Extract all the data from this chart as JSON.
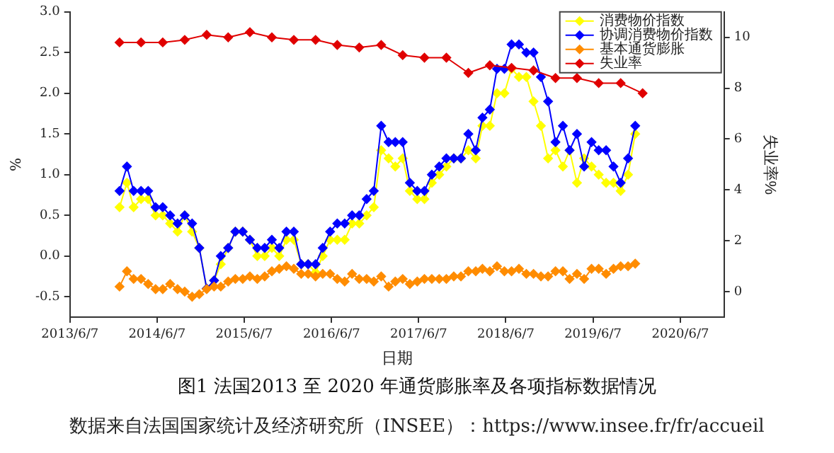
{
  "chart_data": {
    "type": "line",
    "xlabel": "日期",
    "ylabel": "%",
    "y2label": "失业率%",
    "x": [
      "2014-01",
      "2014-02",
      "2014-03",
      "2014-04",
      "2014-05",
      "2014-06",
      "2014-07",
      "2014-08",
      "2014-09",
      "2014-10",
      "2014-11",
      "2014-12",
      "2015-01",
      "2015-02",
      "2015-03",
      "2015-04",
      "2015-05",
      "2015-06",
      "2015-07",
      "2015-08",
      "2015-09",
      "2015-10",
      "2015-11",
      "2015-12",
      "2016-01",
      "2016-02",
      "2016-03",
      "2016-04",
      "2016-05",
      "2016-06",
      "2016-07",
      "2016-08",
      "2016-09",
      "2016-10",
      "2016-11",
      "2016-12",
      "2017-01",
      "2017-02",
      "2017-03",
      "2017-04",
      "2017-05",
      "2017-06",
      "2017-07",
      "2017-08",
      "2017-09",
      "2017-10",
      "2017-11",
      "2017-12",
      "2018-01",
      "2018-02",
      "2018-03",
      "2018-04",
      "2018-05",
      "2018-06",
      "2018-07",
      "2018-08",
      "2018-09",
      "2018-10",
      "2018-11",
      "2018-12",
      "2019-01",
      "2019-02",
      "2019-03",
      "2019-04",
      "2019-05",
      "2019-06",
      "2019-07",
      "2019-08",
      "2019-09",
      "2019-10",
      "2019-11",
      "2019-12"
    ],
    "series": [
      {
        "name": "消费物价指数",
        "color": "#ffff00",
        "values": [
          0.6,
          0.9,
          0.6,
          0.7,
          0.7,
          0.5,
          0.5,
          0.4,
          0.3,
          0.5,
          0.3,
          0.1,
          -0.4,
          -0.3,
          -0.1,
          0.1,
          0.3,
          0.3,
          0.2,
          0.0,
          0.0,
          0.1,
          0.0,
          0.2,
          0.2,
          -0.1,
          -0.1,
          -0.2,
          0.0,
          0.2,
          0.2,
          0.2,
          0.4,
          0.4,
          0.5,
          0.6,
          1.3,
          1.2,
          1.1,
          1.2,
          0.8,
          0.7,
          0.7,
          0.9,
          1.0,
          1.1,
          1.2,
          1.2,
          1.3,
          1.2,
          1.6,
          1.6,
          2.0,
          2.0,
          2.3,
          2.2,
          2.2,
          1.9,
          1.6,
          1.2,
          1.3,
          1.1,
          1.3,
          0.9,
          1.2,
          1.1,
          1.0,
          0.9,
          0.9,
          0.8,
          1.0,
          1.5
        ]
      },
      {
        "name": "协调消费物价指数",
        "color": "#0000ff",
        "values": [
          0.8,
          1.1,
          0.8,
          0.8,
          0.8,
          0.6,
          0.6,
          0.5,
          0.4,
          0.5,
          0.4,
          0.1,
          -0.4,
          -0.3,
          0.0,
          0.1,
          0.3,
          0.3,
          0.2,
          0.1,
          0.1,
          0.2,
          0.1,
          0.3,
          0.3,
          -0.1,
          -0.1,
          -0.1,
          0.1,
          0.3,
          0.4,
          0.4,
          0.5,
          0.5,
          0.7,
          0.8,
          1.6,
          1.4,
          1.4,
          1.4,
          0.9,
          0.8,
          0.8,
          1.0,
          1.1,
          1.2,
          1.2,
          1.2,
          1.5,
          1.3,
          1.7,
          1.8,
          2.3,
          2.3,
          2.6,
          2.6,
          2.5,
          2.5,
          2.2,
          1.9,
          1.4,
          1.6,
          1.3,
          1.5,
          1.1,
          1.4,
          1.3,
          1.3,
          1.1,
          0.9,
          1.2,
          1.6
        ]
      },
      {
        "name": "基本通货膨胀",
        "color": "#ff8c00",
        "axis": "y2",
        "values": [
          0.2,
          0.8,
          0.5,
          0.5,
          0.3,
          0.1,
          0.1,
          0.3,
          0.1,
          0.0,
          -0.2,
          -0.1,
          0.1,
          0.2,
          0.2,
          0.4,
          0.5,
          0.5,
          0.6,
          0.5,
          0.6,
          0.8,
          0.9,
          1.0,
          0.9,
          0.7,
          0.7,
          0.6,
          0.7,
          0.7,
          0.5,
          0.4,
          0.7,
          0.5,
          0.5,
          0.4,
          0.6,
          0.2,
          0.4,
          0.5,
          0.3,
          0.4,
          0.5,
          0.5,
          0.5,
          0.5,
          0.6,
          0.6,
          0.8,
          0.8,
          0.9,
          0.8,
          1.0,
          0.8,
          0.8,
          0.9,
          0.7,
          0.7,
          0.6,
          0.6,
          0.8,
          0.8,
          0.5,
          0.7,
          0.5,
          0.9,
          0.9,
          0.7,
          0.9,
          1.0,
          1.0,
          1.1
        ]
      },
      {
        "name": "失业率",
        "color": "#e00000",
        "axis": "y2",
        "x": [
          "2014-01",
          "2014-04",
          "2014-07",
          "2014-10",
          "2015-01",
          "2015-04",
          "2015-07",
          "2015-10",
          "2016-01",
          "2016-04",
          "2016-07",
          "2016-10",
          "2017-01",
          "2017-04",
          "2017-07",
          "2017-10",
          "2018-01",
          "2018-04",
          "2018-07",
          "2018-10",
          "2019-01",
          "2019-04",
          "2019-07",
          "2019-10",
          "2020-01"
        ],
        "values": [
          9.8,
          9.8,
          9.8,
          9.9,
          10.1,
          10.0,
          10.2,
          10.0,
          9.9,
          9.9,
          9.7,
          9.6,
          9.7,
          9.3,
          9.2,
          9.2,
          8.6,
          8.9,
          8.8,
          8.7,
          8.4,
          8.4,
          8.2,
          8.2,
          7.8
        ]
      }
    ],
    "xlim": [
      "2013-06-07",
      "2020-12-07"
    ],
    "xticks": [
      {
        "value": "2013-06-07",
        "label": "2013/6/7"
      },
      {
        "value": "2014-06-07",
        "label": "2014/6/7"
      },
      {
        "value": "2015-06-07",
        "label": "2015/6/7"
      },
      {
        "value": "2016-06-07",
        "label": "2016/6/7"
      },
      {
        "value": "2017-06-07",
        "label": "2017/6/7"
      },
      {
        "value": "2018-06-07",
        "label": "2018/6/7"
      },
      {
        "value": "2019-06-07",
        "label": "2019/6/7"
      },
      {
        "value": "2020-06-07",
        "label": "2020/6/7"
      }
    ],
    "ylim": [
      -0.75,
      3.0
    ],
    "yticks": [
      -0.5,
      {
        "value": 0,
        "label": "0.0"
      },
      0.5,
      {
        "value": 1,
        "label": "1.0"
      },
      1.5,
      {
        "value": 2,
        "label": "2.0"
      },
      2.5,
      {
        "value": 3,
        "label": "3.0"
      }
    ],
    "y2lim": [
      -1,
      11
    ],
    "y2ticks": [
      0,
      2,
      4,
      6,
      8,
      10
    ],
    "legend": "top right",
    "marker": "diamond",
    "line_style": "solid",
    "annotations": [
      "图1 法国2013 至 2020 年通货膨胀率及各项指标数据情况",
      "数据来自法国国家统计及经济研究所（INSEE）：https://www.insee.fr/fr/accueil"
    ]
  }
}
